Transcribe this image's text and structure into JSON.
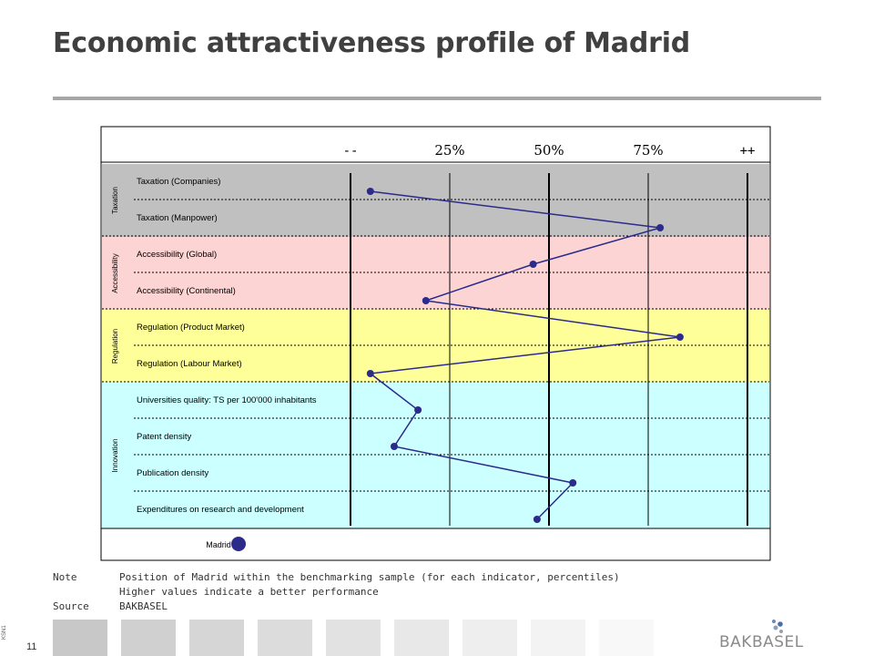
{
  "page": {
    "title": "Economic attractiveness profile of Madrid",
    "page_number": "11",
    "side_code": "KSN1"
  },
  "notes": {
    "note_label": "Note",
    "note_line1": "Position of Madrid within the benchmarking sample (for each indicator, percentiles)",
    "note_line2": "Higher values indicate a better performance",
    "source_label": "Source",
    "source_value": "BAKBASEL"
  },
  "logo": {
    "text": "BAKBASEL"
  },
  "colors": {
    "taxation": "#c0c0c0",
    "accessibility": "#fcd4d4",
    "regulation": "#ffff99",
    "innovation": "#ccffff",
    "series": "#2b2b8c",
    "footer_boxes": [
      "#c8c8c8",
      "#d0d0d0",
      "#d6d6d6",
      "#dcdcdc",
      "#e2e2e2",
      "#e8e8e8",
      "#eeeeee",
      "#f3f3f3",
      "#f8f8f8"
    ]
  },
  "chart_data": {
    "type": "line",
    "orientation": "horizontal-profile",
    "axis_labels": [
      "--",
      "25%",
      "50%",
      "75%",
      "++"
    ],
    "xlim": [
      0,
      100
    ],
    "groups": [
      {
        "name": "Taxation",
        "color_key": "taxation",
        "indicators": [
          "Taxation (Companies)",
          "Taxation (Manpower)"
        ]
      },
      {
        "name": "Accessibility",
        "color_key": "accessibility",
        "indicators": [
          "Accessibility (Global)",
          "Accessibility (Continental)"
        ]
      },
      {
        "name": "Regulation",
        "color_key": "regulation",
        "indicators": [
          "Regulation (Product Market)",
          "Regulation (Labour Market)"
        ]
      },
      {
        "name": "Innovation",
        "color_key": "innovation",
        "indicators": [
          "Universities quality: TS per 100'000 inhabitants",
          "Patent density",
          "Publication density",
          "Expenditures on research and development"
        ]
      }
    ],
    "series": [
      {
        "name": "Madrid",
        "values": [
          5,
          78,
          46,
          19,
          83,
          5,
          17,
          11,
          56,
          47
        ]
      }
    ],
    "legend": "bottom-left"
  }
}
